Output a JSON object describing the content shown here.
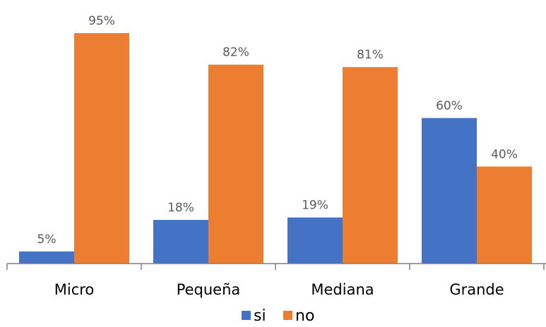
{
  "chart_data": {
    "type": "bar",
    "categories": [
      "Micro",
      "Pequeña",
      "Mediana",
      "Grande"
    ],
    "series": [
      {
        "name": "si",
        "values": [
          5,
          18,
          19,
          60
        ],
        "labels": [
          "5%",
          "18%",
          "19%",
          "60%"
        ],
        "color": "#4472C4"
      },
      {
        "name": "no",
        "values": [
          95,
          82,
          81,
          40
        ],
        "labels": [
          "95%",
          "82%",
          "81%",
          "40%"
        ],
        "color": "#ED7D31"
      }
    ],
    "ylim": [
      0,
      100
    ],
    "grid": false,
    "legend_position": "bottom"
  }
}
